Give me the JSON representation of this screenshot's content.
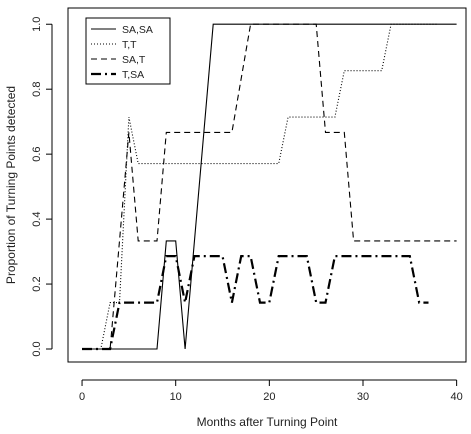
{
  "chart_data": {
    "type": "line",
    "title": "",
    "xlabel": "Months after Turning Point",
    "ylabel": "Proportion of Turning Points detected",
    "xlim": [
      -1.5,
      41
    ],
    "ylim": [
      -0.04,
      1.05
    ],
    "xticks": [
      0,
      10,
      20,
      30,
      40
    ],
    "yticks": [
      0.0,
      0.2,
      0.4,
      0.6,
      0.8,
      1.0
    ],
    "xtick_labels": [
      "0",
      "10",
      "20",
      "30",
      "40"
    ],
    "ytick_labels": [
      "0.0",
      "0.2",
      "0.4",
      "0.6",
      "0.8",
      "1.0"
    ],
    "legend_position": "top-left",
    "grid": false,
    "series": [
      {
        "name": "SA,SA",
        "style": "solid",
        "x": [
          0,
          8,
          9,
          10,
          11,
          14,
          40
        ],
        "y": [
          0.0,
          0.0,
          0.333,
          0.333,
          0.0,
          1.0,
          1.0
        ]
      },
      {
        "name": "T,T",
        "style": "dotted",
        "x": [
          0,
          2,
          3,
          4,
          5,
          6,
          21,
          22,
          27,
          28,
          29,
          30,
          32,
          33,
          38
        ],
        "y": [
          0.0,
          0.0,
          0.143,
          0.143,
          0.714,
          0.571,
          0.571,
          0.714,
          0.714,
          0.857,
          0.857,
          0.857,
          0.857,
          1.0,
          1.0
        ]
      },
      {
        "name": "SA,T",
        "style": "dashed",
        "x": [
          0,
          3,
          4,
          5,
          6,
          8,
          9,
          12,
          16,
          17,
          18,
          25,
          26,
          27,
          28,
          29,
          40
        ],
        "y": [
          0.0,
          0.0,
          0.333,
          0.667,
          0.333,
          0.333,
          0.667,
          0.667,
          0.667,
          0.833,
          1.0,
          1.0,
          0.667,
          0.667,
          0.667,
          0.333,
          0.333
        ]
      },
      {
        "name": "T,SA",
        "style": "dashdot",
        "x": [
          0,
          3,
          4,
          5,
          8,
          9,
          10,
          11,
          12,
          15,
          16,
          17,
          18,
          19,
          20,
          21,
          24,
          25,
          26,
          27,
          35,
          36,
          37
        ],
        "y": [
          0.0,
          0.0,
          0.143,
          0.143,
          0.143,
          0.286,
          0.286,
          0.143,
          0.286,
          0.286,
          0.143,
          0.286,
          0.286,
          0.143,
          0.143,
          0.286,
          0.286,
          0.143,
          0.143,
          0.286,
          0.286,
          0.143,
          0.143
        ]
      }
    ]
  }
}
